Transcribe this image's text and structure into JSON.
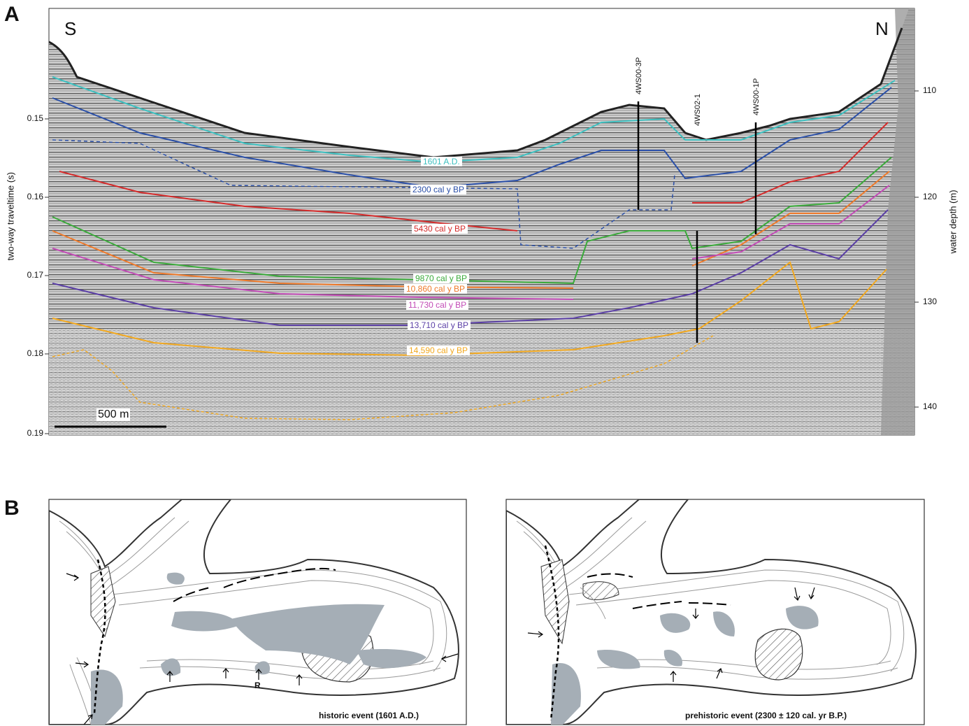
{
  "panel_a": {
    "letter": "A",
    "south": "S",
    "north": "N",
    "y_left_label": "two-way traveltime (s)",
    "y_right_label": "water depth (m)",
    "left_ticks": [
      "0.15",
      "0.16",
      "0.17",
      "0.18",
      "0.19"
    ],
    "right_ticks": [
      "110",
      "120",
      "130",
      "140"
    ],
    "scale_bar": "500 m",
    "cores": [
      "4WS00-3P",
      "4WS02-1",
      "4WS00-1P"
    ],
    "horizons": [
      {
        "label": "1601 A.D.",
        "color": "#3cc0c0"
      },
      {
        "label": "2300 cal y BP",
        "color": "#2a4fa8"
      },
      {
        "label": "5430 cal y BP",
        "color": "#d42a2a"
      },
      {
        "label": "9870 cal y BP",
        "color": "#3aaa3a"
      },
      {
        "label": "10,860 cal y BP",
        "color": "#ef7a2a"
      },
      {
        "label": "11,730 cal y BP",
        "color": "#c24bb6"
      },
      {
        "label": "13,710 cal y BP",
        "color": "#5b3fa6"
      },
      {
        "label": "14,590 cal y BP",
        "color": "#f2a81e"
      }
    ]
  },
  "panel_b": {
    "letter": "B",
    "left_caption": "historic event (1601 A.D.)",
    "right_caption": "prehistoric event (2300 ± 120 cal. yr B.P.)",
    "marker": "R"
  }
}
